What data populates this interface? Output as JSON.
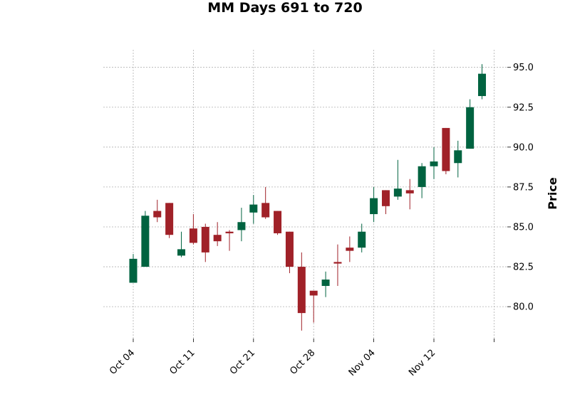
{
  "chart_data": {
    "type": "candlestick",
    "title": "MM Days 691 to 720",
    "ylabel": "Price",
    "xlabel": "",
    "ylim": [
      78.0,
      96.1
    ],
    "y_ticks": [
      80.0,
      82.5,
      85.0,
      87.5,
      90.0,
      92.5,
      95.0
    ],
    "y_axis_side": "right",
    "grid": true,
    "colors": {
      "up": "#006340",
      "down": "#a02128",
      "grid": "#b0b0b0"
    },
    "x_tick_labels": [
      {
        "label": "Oct 04",
        "index": 0
      },
      {
        "label": "Oct 11",
        "index": 5
      },
      {
        "label": "Oct 21",
        "index": 10
      },
      {
        "label": "Oct 28",
        "index": 15
      },
      {
        "label": "Nov 04",
        "index": 20
      },
      {
        "label": "Nov 12",
        "index": 25
      },
      {
        "label": "",
        "index": 30
      }
    ],
    "candles": [
      {
        "open": 81.5,
        "high": 83.3,
        "low": 81.5,
        "close": 83.0
      },
      {
        "open": 82.5,
        "high": 86.0,
        "low": 82.5,
        "close": 85.7
      },
      {
        "open": 86.0,
        "high": 86.7,
        "low": 85.3,
        "close": 85.6
      },
      {
        "open": 86.5,
        "high": 86.5,
        "low": 84.3,
        "close": 84.5
      },
      {
        "open": 83.2,
        "high": 84.7,
        "low": 83.1,
        "close": 83.6
      },
      {
        "open": 84.9,
        "high": 85.8,
        "low": 83.9,
        "close": 84.0
      },
      {
        "open": 85.0,
        "high": 85.2,
        "low": 82.8,
        "close": 83.4
      },
      {
        "open": 84.5,
        "high": 85.3,
        "low": 83.8,
        "close": 84.1
      },
      {
        "open": 84.7,
        "high": 84.8,
        "low": 83.5,
        "close": 84.6
      },
      {
        "open": 84.8,
        "high": 86.2,
        "low": 84.1,
        "close": 85.3
      },
      {
        "open": 85.9,
        "high": 87.0,
        "low": 85.2,
        "close": 86.4
      },
      {
        "open": 86.5,
        "high": 87.5,
        "low": 85.5,
        "close": 85.6
      },
      {
        "open": 86.0,
        "high": 86.0,
        "low": 84.5,
        "close": 84.6
      },
      {
        "open": 84.7,
        "high": 84.7,
        "low": 82.1,
        "close": 82.5
      },
      {
        "open": 82.5,
        "high": 83.4,
        "low": 78.5,
        "close": 79.6
      },
      {
        "open": 81.0,
        "high": 81.0,
        "low": 79.0,
        "close": 80.7
      },
      {
        "open": 81.3,
        "high": 82.2,
        "low": 80.6,
        "close": 81.7
      },
      {
        "open": 82.8,
        "high": 83.9,
        "low": 81.3,
        "close": 82.7
      },
      {
        "open": 83.7,
        "high": 84.4,
        "low": 82.8,
        "close": 83.5
      },
      {
        "open": 83.7,
        "high": 85.2,
        "low": 83.4,
        "close": 84.7
      },
      {
        "open": 85.8,
        "high": 87.5,
        "low": 85.3,
        "close": 86.8
      },
      {
        "open": 87.3,
        "high": 87.3,
        "low": 85.8,
        "close": 86.3
      },
      {
        "open": 86.9,
        "high": 89.2,
        "low": 86.7,
        "close": 87.4
      },
      {
        "open": 87.3,
        "high": 88.0,
        "low": 86.1,
        "close": 87.1
      },
      {
        "open": 87.5,
        "high": 89.0,
        "low": 86.8,
        "close": 88.8
      },
      {
        "open": 88.8,
        "high": 90.0,
        "low": 88.0,
        "close": 89.1
      },
      {
        "open": 91.2,
        "high": 91.2,
        "low": 88.3,
        "close": 88.5
      },
      {
        "open": 89.0,
        "high": 90.4,
        "low": 88.1,
        "close": 89.8
      },
      {
        "open": 89.9,
        "high": 93.0,
        "low": 89.9,
        "close": 92.5
      },
      {
        "open": 93.2,
        "high": 95.2,
        "low": 93.0,
        "close": 94.6
      }
    ]
  }
}
